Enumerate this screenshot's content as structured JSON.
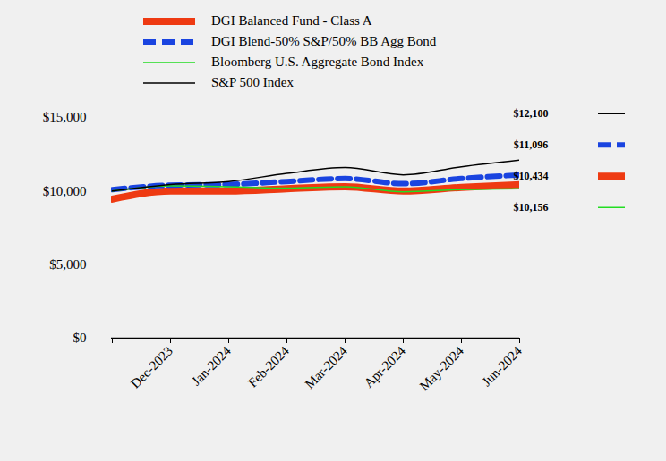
{
  "chart_data": {
    "type": "line",
    "categories": [
      null,
      "Dec-2023",
      "Jan-2024",
      "Feb-2024",
      "Mar-2024",
      "Apr-2024",
      "May-2024",
      "Jun-2024"
    ],
    "series": [
      {
        "name": "DGI Balanced Fund - Class A",
        "color": "#ee3a12",
        "line_style": "solid",
        "values": [
          9450,
          10000,
          10000,
          10150,
          10300,
          10000,
          10250,
          10434
        ],
        "value_labels": [
          null,
          null,
          null,
          null,
          null,
          null,
          null,
          "$10,434"
        ]
      },
      {
        "name": "DGI Blend-50% S&P/50% BB Agg Bond",
        "color": "#1a44e0",
        "line_style": "dashed",
        "values": [
          10100,
          10400,
          10450,
          10650,
          10850,
          10500,
          10850,
          11096
        ],
        "value_labels": [
          null,
          null,
          null,
          null,
          null,
          null,
          null,
          "$11,096"
        ]
      },
      {
        "name": "Bloomberg U.S. Aggregate Bond Index",
        "color": "#22dd22",
        "line_style": "solid",
        "values": [
          10000,
          10350,
          10300,
          10200,
          10300,
          9950,
          10100,
          10156
        ],
        "value_labels": [
          null,
          null,
          null,
          null,
          null,
          null,
          null,
          "$10,156"
        ]
      },
      {
        "name": "S&P 500 Index",
        "color": "#000000",
        "line_style": "solid",
        "values": [
          10000,
          10450,
          10650,
          11200,
          11600,
          11100,
          11650,
          12100
        ],
        "value_labels": [
          null,
          null,
          null,
          null,
          null,
          null,
          null,
          "$12,100"
        ]
      }
    ],
    "ylim": [
      0,
      15000
    ],
    "yticks": [
      {
        "value": 0,
        "label": "$0"
      },
      {
        "value": 5000,
        "label": "$5,000"
      },
      {
        "value": 10000,
        "label": "$10,000"
      },
      {
        "value": 15000,
        "label": "$15,000"
      }
    ],
    "legend": "top"
  }
}
